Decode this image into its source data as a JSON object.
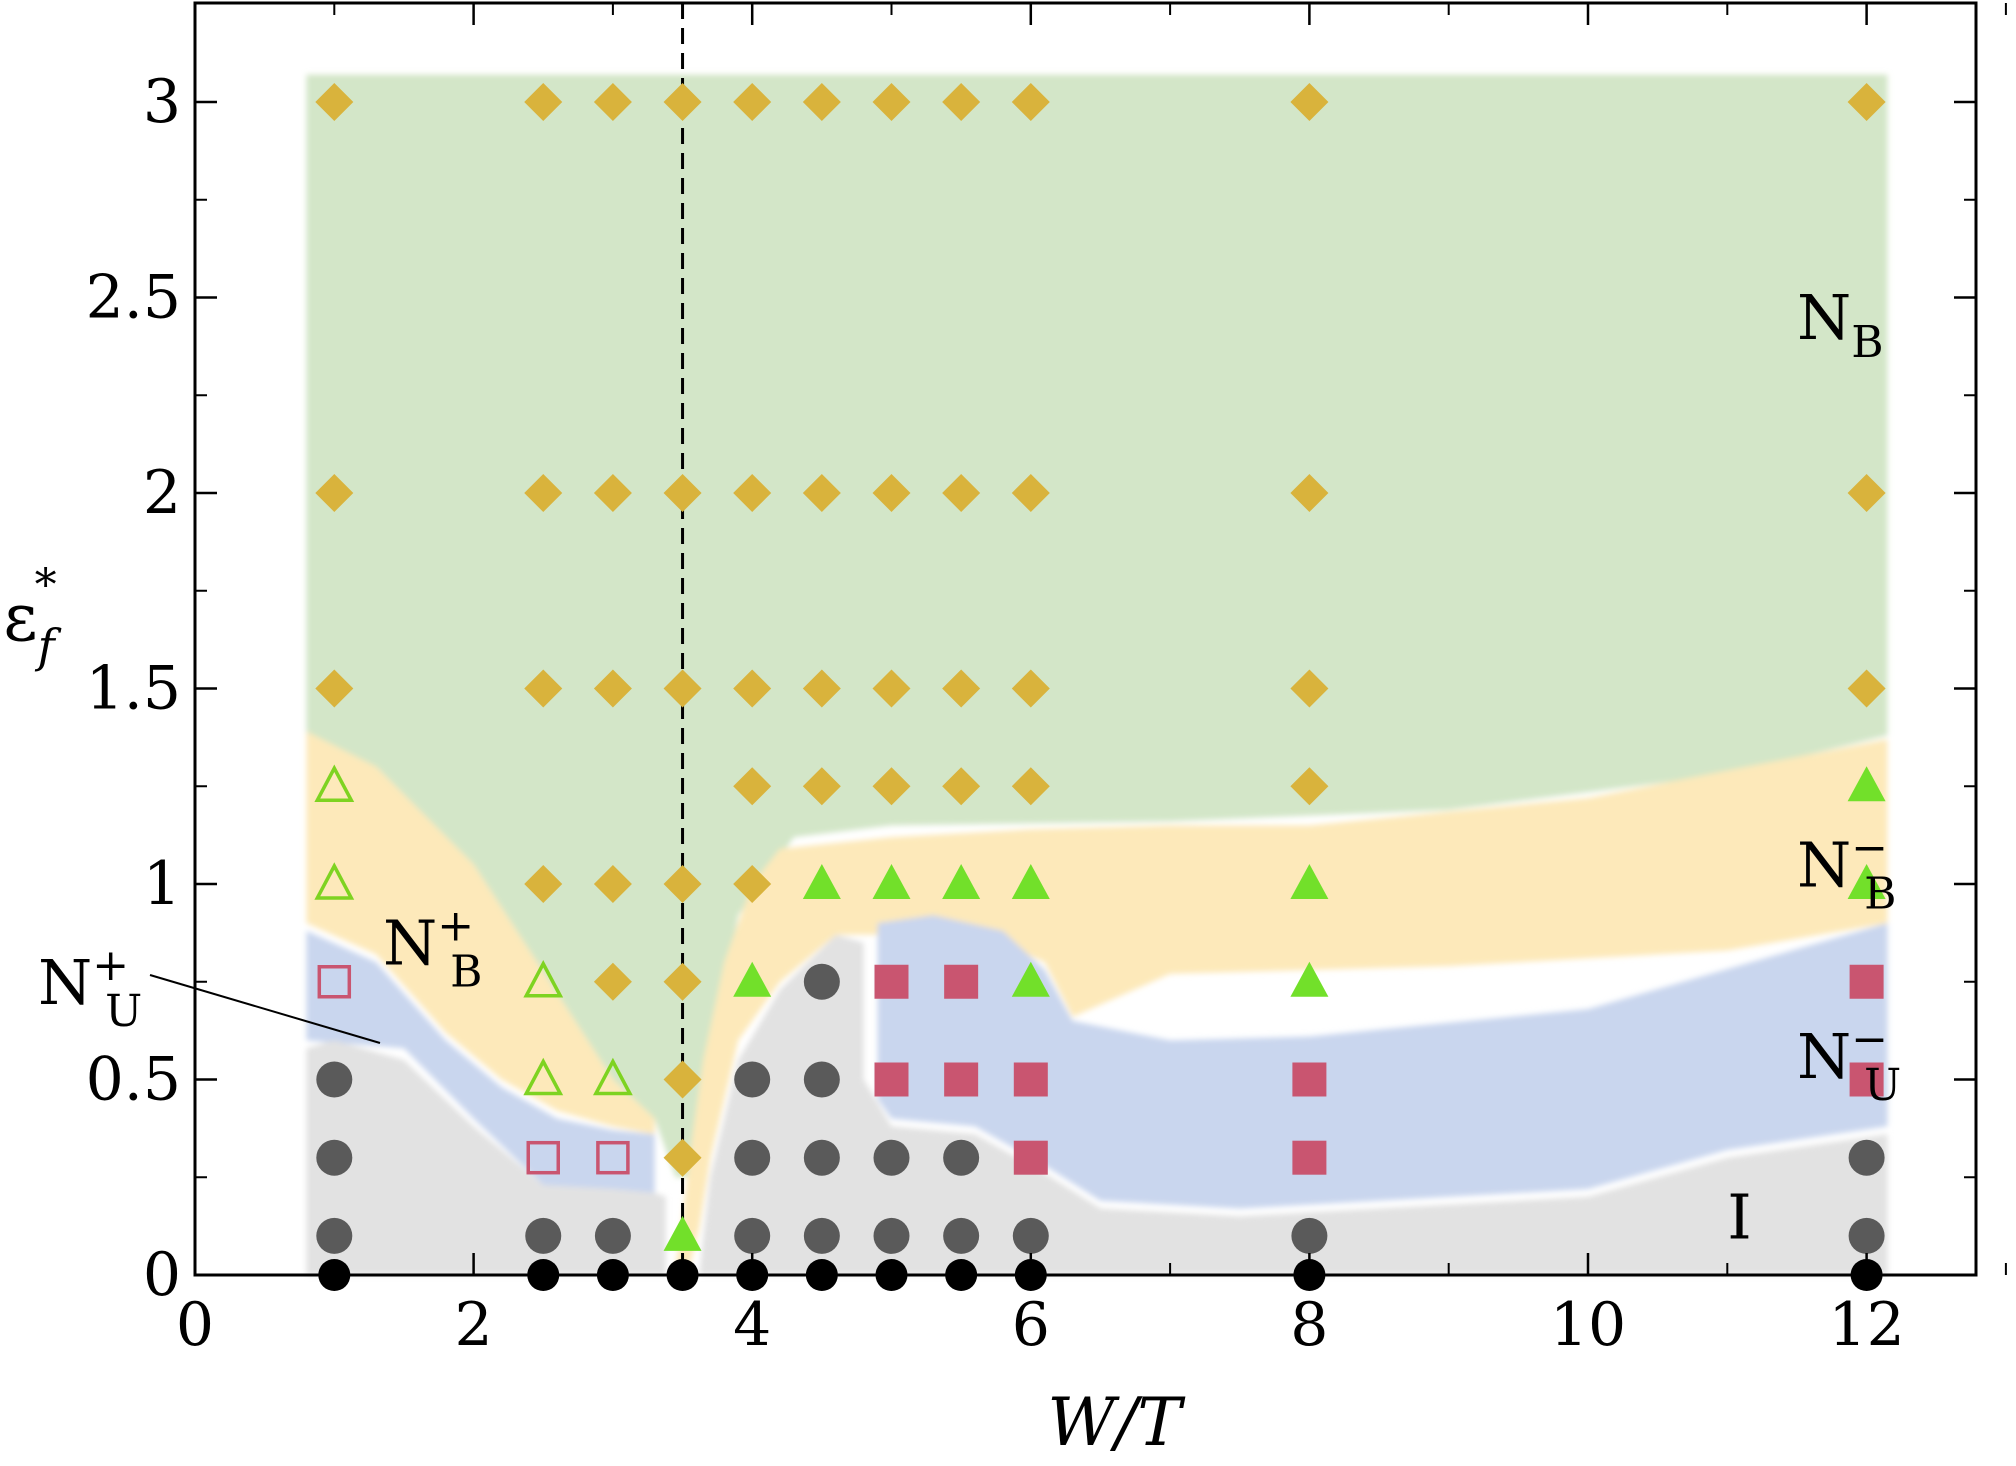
{
  "chart_data": {
    "type": "scatter",
    "xlabel": "W/T",
    "ylabel": "ε",
    "ylabel_sub": "f",
    "ylabel_sup": "*",
    "xlim": [
      0,
      13.3
    ],
    "ylim": [
      0,
      3.25
    ],
    "x_ticks": [
      0,
      2,
      4,
      6,
      8,
      10,
      12
    ],
    "x_tick_labels": [
      "0",
      "2",
      "4",
      "6",
      "8",
      "10",
      "12"
    ],
    "y_ticks": [
      0,
      0.5,
      1,
      1.5,
      2,
      2.5,
      3
    ],
    "y_tick_labels": [
      "0",
      "0.5",
      "1",
      "1.5",
      "2",
      "2.5",
      "3"
    ],
    "reference_line_x": 3.5,
    "regions": [
      {
        "id": "NB",
        "label_main": "N",
        "label_sub": "B",
        "label_sup": "",
        "color": "#d3e6c8",
        "label_at": [
          11.5,
          2.45
        ]
      },
      {
        "id": "NB-",
        "label_main": "N",
        "label_sub": "B",
        "label_sup": "−",
        "color": "#fde9ba",
        "label_at": [
          11.5,
          1.05
        ]
      },
      {
        "id": "NU-",
        "label_main": "N",
        "label_sub": "U",
        "label_sup": "−",
        "color": "#c9d6ee",
        "label_at": [
          11.5,
          0.56
        ]
      },
      {
        "id": "I",
        "label_main": "I",
        "label_sub": "",
        "label_sup": "",
        "color": "#e2e2e2",
        "label_at": [
          11.0,
          0.15
        ]
      },
      {
        "id": "NB+",
        "label_main": "N",
        "label_sub": "B",
        "label_sup": "+",
        "color": "#fde9ba",
        "label_at": [
          1.35,
          0.85
        ]
      },
      {
        "id": "NU+",
        "label_main": "N",
        "label_sub": "U",
        "label_sup": "+",
        "color": "#c9d6ee",
        "label_at": [
          -1.1,
          0.75
        ]
      }
    ],
    "series": [
      {
        "marker": "circle-black",
        "color": "#000000",
        "points": [
          [
            1,
            0
          ],
          [
            2.5,
            0
          ],
          [
            3,
            0
          ],
          [
            3.5,
            0
          ],
          [
            4,
            0
          ],
          [
            4.5,
            0
          ],
          [
            5,
            0
          ],
          [
            5.5,
            0
          ],
          [
            6,
            0
          ],
          [
            8,
            0
          ],
          [
            12,
            0
          ]
        ]
      },
      {
        "marker": "circle-gray",
        "color": "#5a5a5a",
        "points": [
          [
            1,
            0.1
          ],
          [
            1,
            0.3
          ],
          [
            1,
            0.5
          ],
          [
            2.5,
            0.1
          ],
          [
            3,
            0.1
          ],
          [
            4,
            0.1
          ],
          [
            4,
            0.3
          ],
          [
            4,
            0.5
          ],
          [
            4.5,
            0.1
          ],
          [
            4.5,
            0.3
          ],
          [
            4.5,
            0.5
          ],
          [
            4.5,
            0.75
          ],
          [
            5,
            0.1
          ],
          [
            5,
            0.3
          ],
          [
            5.5,
            0.1
          ],
          [
            5.5,
            0.3
          ],
          [
            6,
            0.1
          ],
          [
            8,
            0.1
          ],
          [
            12,
            0.1
          ],
          [
            12,
            0.3
          ]
        ]
      },
      {
        "marker": "square-open",
        "color": "#c95570",
        "points": [
          [
            1,
            0.75
          ],
          [
            2.5,
            0.3
          ],
          [
            3,
            0.3
          ]
        ]
      },
      {
        "marker": "square-filled",
        "color": "#c95570",
        "points": [
          [
            5,
            0.75
          ],
          [
            5,
            0.5
          ],
          [
            5.5,
            0.75
          ],
          [
            5.5,
            0.5
          ],
          [
            6,
            0.5
          ],
          [
            6,
            0.3
          ],
          [
            8,
            0.5
          ],
          [
            8,
            0.3
          ],
          [
            12,
            0.75
          ],
          [
            12,
            0.5
          ]
        ]
      },
      {
        "marker": "triangle-open",
        "color": "#7ed321",
        "points": [
          [
            1,
            1.25
          ],
          [
            1,
            1.0
          ],
          [
            2.5,
            0.75
          ],
          [
            2.5,
            0.5
          ],
          [
            3,
            0.5
          ]
        ]
      },
      {
        "marker": "triangle-filled",
        "color": "#72e02a",
        "points": [
          [
            3.5,
            0.1
          ],
          [
            4,
            0.75
          ],
          [
            4.5,
            1.0
          ],
          [
            5,
            1.0
          ],
          [
            5.5,
            1.0
          ],
          [
            6,
            1.0
          ],
          [
            6,
            0.75
          ],
          [
            8,
            1.0
          ],
          [
            8,
            0.75
          ],
          [
            12,
            1.25
          ],
          [
            12,
            1.0
          ]
        ]
      },
      {
        "marker": "diamond",
        "color": "#d9b33c",
        "points": [
          [
            1,
            3
          ],
          [
            2.5,
            3
          ],
          [
            3,
            3
          ],
          [
            3.5,
            3
          ],
          [
            4,
            3
          ],
          [
            4.5,
            3
          ],
          [
            5,
            3
          ],
          [
            5.5,
            3
          ],
          [
            6,
            3
          ],
          [
            8,
            3
          ],
          [
            12,
            3
          ],
          [
            1,
            2
          ],
          [
            2.5,
            2
          ],
          [
            3,
            2
          ],
          [
            3.5,
            2
          ],
          [
            4,
            2
          ],
          [
            4.5,
            2
          ],
          [
            5,
            2
          ],
          [
            5.5,
            2
          ],
          [
            6,
            2
          ],
          [
            8,
            2
          ],
          [
            12,
            2
          ],
          [
            1,
            1.5
          ],
          [
            2.5,
            1.5
          ],
          [
            3,
            1.5
          ],
          [
            3.5,
            1.5
          ],
          [
            4,
            1.5
          ],
          [
            4.5,
            1.5
          ],
          [
            5,
            1.5
          ],
          [
            5.5,
            1.5
          ],
          [
            6,
            1.5
          ],
          [
            8,
            1.5
          ],
          [
            12,
            1.5
          ],
          [
            4,
            1.25
          ],
          [
            4.5,
            1.25
          ],
          [
            5,
            1.25
          ],
          [
            5.5,
            1.25
          ],
          [
            6,
            1.25
          ],
          [
            8,
            1.25
          ],
          [
            2.5,
            1.0
          ],
          [
            3,
            1.0
          ],
          [
            3.5,
            1.0
          ],
          [
            4,
            1.0
          ],
          [
            3,
            0.75
          ],
          [
            3.5,
            0.75
          ],
          [
            3.5,
            0.5
          ],
          [
            3.5,
            0.3
          ]
        ]
      }
    ]
  }
}
